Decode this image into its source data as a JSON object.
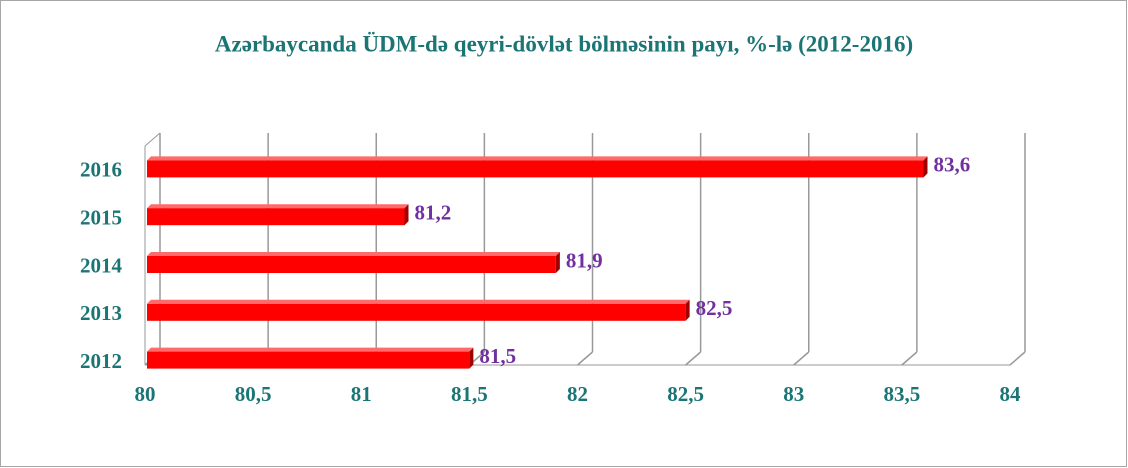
{
  "chart_data": {
    "type": "bar",
    "orientation": "horizontal",
    "title": "Azərbaycanda ÜDM-də qeyri-dövlət bölməsinin payı, %-lə (2012-2016)",
    "categories": [
      "2016",
      "2015",
      "2014",
      "2013",
      "2012"
    ],
    "values": [
      83.6,
      81.2,
      81.9,
      82.5,
      81.5
    ],
    "value_labels": [
      "83,6",
      "81,2",
      "81,9",
      "82,5",
      "81,5"
    ],
    "color": "#ff0000",
    "xlim": [
      80,
      84
    ],
    "xticks": [
      80,
      {
        "value": 80.5,
        "label": "80,5"
      },
      81,
      {
        "value": 81.5,
        "label": "81,5"
      },
      82,
      {
        "value": 82.5,
        "label": "82,5"
      },
      83,
      {
        "value": 83.5,
        "label": "83,5"
      },
      84
    ],
    "grid": true
  }
}
